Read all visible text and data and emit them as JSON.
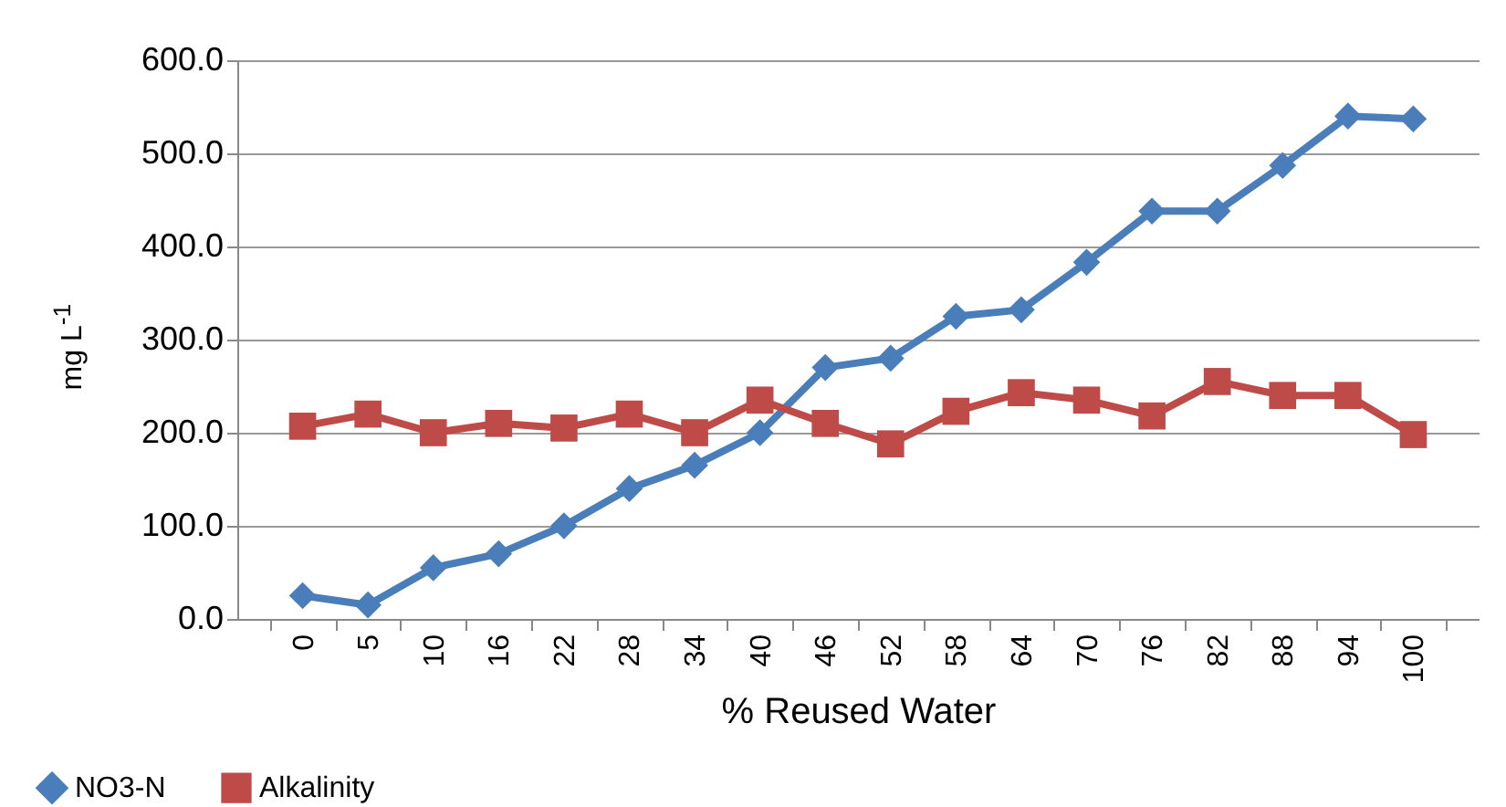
{
  "chart_data": {
    "type": "line",
    "xlabel": "% Reused Water",
    "ylabel": "mg L$^{-1}$",
    "categories": [
      "0",
      "5",
      "10",
      "16",
      "22",
      "28",
      "34",
      "40",
      "46",
      "52",
      "58",
      "64",
      "70",
      "76",
      "82",
      "88",
      "94",
      "100"
    ],
    "series": [
      {
        "name": "NO3-N",
        "color": "#4a7ebb",
        "marker": "diamond",
        "values": [
          25,
          15,
          55,
          70,
          100,
          140,
          165,
          200,
          270,
          280,
          325,
          332,
          383,
          438,
          438,
          487,
          540,
          537
        ]
      },
      {
        "name": "Alkalinity",
        "color": "#be4b48",
        "marker": "square",
        "values": [
          207,
          220,
          200,
          210,
          205,
          220,
          200,
          235,
          210,
          188,
          223,
          243,
          235,
          218,
          255,
          240,
          240,
          198
        ]
      }
    ],
    "ylim": [
      0,
      600
    ],
    "yticks": [
      {
        "value": 0,
        "label": "0.0"
      },
      {
        "value": 100,
        "label": "100.0"
      },
      {
        "value": 200,
        "label": "200.0"
      },
      {
        "value": 300,
        "label": "300.0"
      },
      {
        "value": 400,
        "label": "400.0"
      },
      {
        "value": 500,
        "label": "500.0"
      },
      {
        "value": 600,
        "label": "600.0"
      }
    ],
    "grid": "y",
    "legend": "bottom left"
  }
}
